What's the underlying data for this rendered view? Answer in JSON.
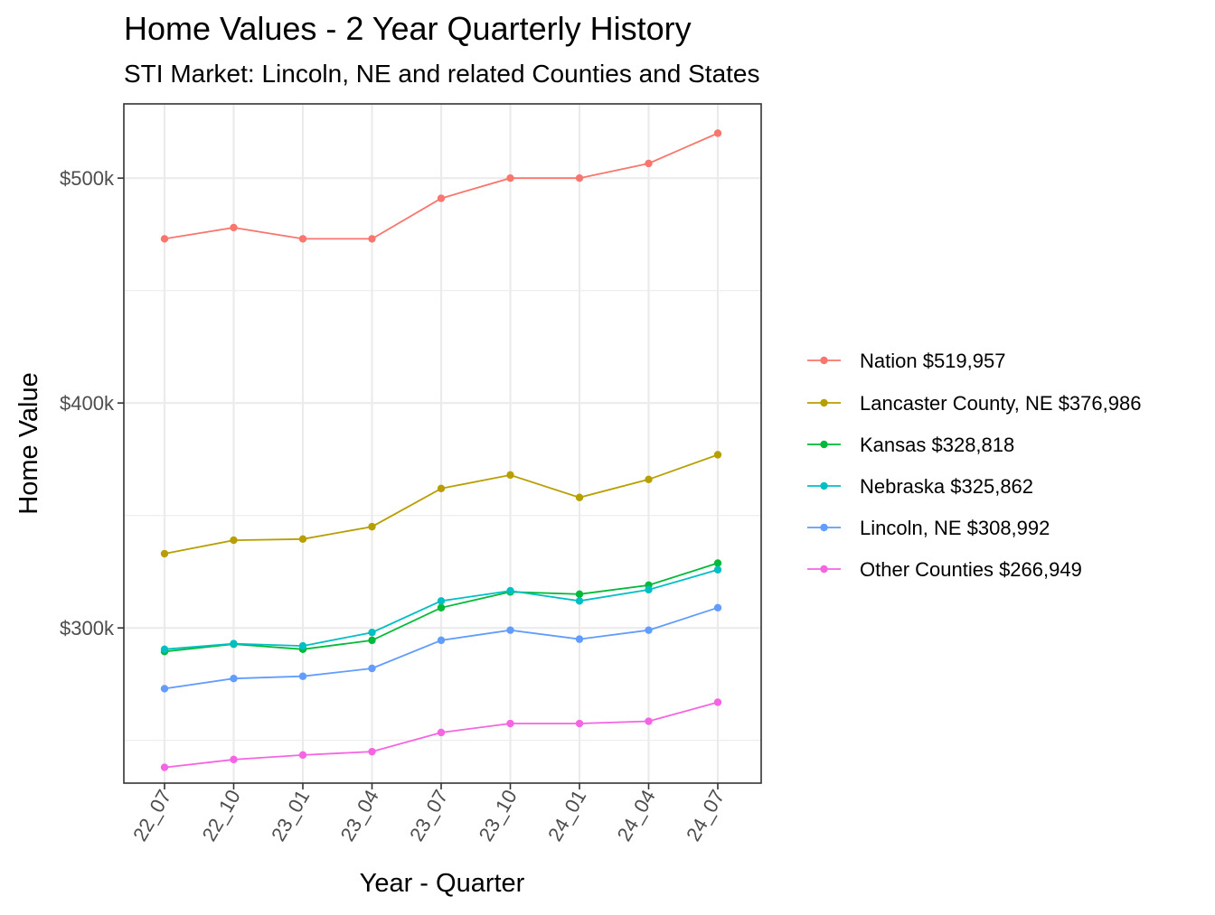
{
  "chart_data": {
    "type": "line",
    "title": "Home Values - 2 Year Quarterly History",
    "subtitle": "STI Market: Lincoln, NE and related Counties and States",
    "xlabel": "Year - Quarter",
    "ylabel": "Home Value",
    "categories": [
      "22_07",
      "22_10",
      "23_01",
      "23_04",
      "23_07",
      "23_10",
      "24_01",
      "24_04",
      "24_07"
    ],
    "ylim": [
      231000,
      533000
    ],
    "yticks": [
      300000,
      400000,
      500000
    ],
    "ytick_labels": [
      "$300k",
      "$400k",
      "$500k"
    ],
    "grid": true,
    "legend_position": "right",
    "series": [
      {
        "name": "Nation $519,957",
        "color": "#F8766D",
        "values": [
          473000,
          478000,
          473000,
          473000,
          491000,
          500000,
          500000,
          506500,
          519957
        ]
      },
      {
        "name": "Lancaster County, NE $376,986",
        "color": "#B79F00",
        "values": [
          333000,
          339000,
          339500,
          345000,
          362000,
          368000,
          358000,
          366000,
          376986
        ]
      },
      {
        "name": "Kansas $328,818",
        "color": "#00BA38",
        "values": [
          289500,
          292800,
          290500,
          294500,
          309000,
          316000,
          315000,
          319000,
          328818
        ]
      },
      {
        "name": "Nebraska $325,862",
        "color": "#00BFC4",
        "values": [
          290500,
          293000,
          292000,
          298000,
          312000,
          316500,
          312000,
          317000,
          325862
        ]
      },
      {
        "name": "Lincoln, NE $308,992",
        "color": "#619CFF",
        "values": [
          273000,
          277500,
          278500,
          282000,
          294500,
          299000,
          295000,
          299000,
          308992
        ]
      },
      {
        "name": "Other Counties $266,949",
        "color": "#F564E3",
        "values": [
          238000,
          241500,
          243500,
          245000,
          253500,
          257500,
          257500,
          258500,
          266949
        ]
      }
    ]
  }
}
